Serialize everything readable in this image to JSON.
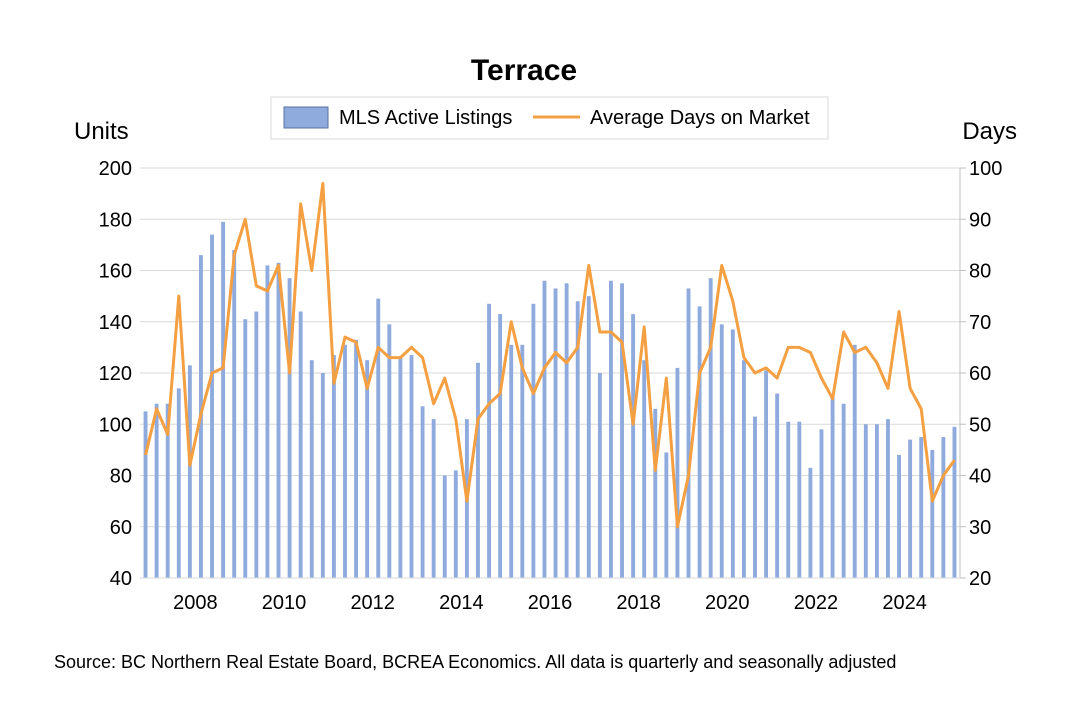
{
  "chart_data": {
    "type": "bar",
    "title": "Terrace",
    "y_left_label": "Units",
    "y_right_label": "Days",
    "ylim_left": [
      40,
      200
    ],
    "yticks_left": [
      "200",
      "180",
      "160",
      "140",
      "120",
      "100",
      "80",
      "60",
      "40"
    ],
    "ylim_right": [
      20,
      100
    ],
    "yticks_right": [
      "100",
      "90",
      "80",
      "70",
      "60",
      "50",
      "40",
      "30",
      "20"
    ],
    "x_tick_labels": [
      "2008",
      "2010",
      "2012",
      "2014",
      "2016",
      "2018",
      "2020",
      "2022",
      "2024"
    ],
    "x_tick_years": [
      2008,
      2010,
      2012,
      2014,
      2016,
      2018,
      2020,
      2022,
      2024
    ],
    "x_start": "2006-Q4",
    "x_end": "2024-Q4",
    "grid": "horizontal",
    "legend_position": "top",
    "series": [
      {
        "name": "MLS Active Listings",
        "type": "bar",
        "axis": "left",
        "color": "#8FAADC",
        "values": [
          105,
          108,
          108,
          114,
          123,
          166,
          174,
          179,
          168,
          141,
          144,
          162,
          163,
          157,
          144,
          125,
          120,
          127,
          131,
          133,
          125,
          149,
          139,
          126,
          127,
          107,
          102,
          80,
          82,
          102,
          124,
          147,
          143,
          131,
          131,
          147,
          156,
          153,
          155,
          148,
          150,
          120,
          156,
          155,
          143,
          125,
          106,
          89,
          122,
          153,
          146,
          157,
          139,
          137,
          125,
          103,
          121,
          112,
          101,
          101,
          83,
          98,
          111,
          108,
          131,
          100,
          100,
          102,
          88,
          94,
          95,
          90,
          95,
          99
        ]
      },
      {
        "name": "Average Days on Market",
        "type": "line",
        "axis": "right",
        "color": "#F4A042",
        "values": [
          44,
          53,
          48,
          75,
          42,
          52,
          60,
          61,
          83,
          90,
          77,
          76,
          81,
          60,
          93,
          80,
          97,
          58,
          67,
          66,
          57,
          65,
          63,
          63,
          65,
          63,
          54,
          59,
          51,
          35,
          51,
          54,
          56,
          70,
          61,
          56,
          61,
          64,
          62,
          65,
          81,
          68,
          68,
          66,
          50,
          69,
          41,
          59,
          30,
          40,
          60,
          65,
          81,
          74,
          63,
          60,
          61,
          59,
          65,
          65,
          64,
          59,
          55,
          68,
          64,
          65,
          62,
          57,
          72,
          57,
          53,
          35,
          40,
          43
        ]
      }
    ]
  },
  "legend": {
    "bars_label": "MLS Active Listings",
    "line_label": "Average Days on Market"
  },
  "source_note": "Source: BC Northern Real Estate Board, BCREA Economics. All data is quarterly and seasonally adjusted"
}
